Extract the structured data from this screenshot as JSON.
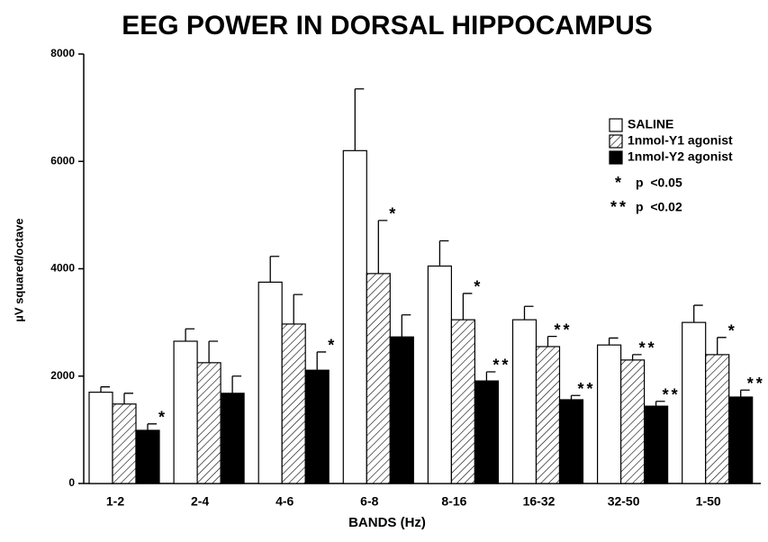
{
  "chart_data": {
    "type": "bar",
    "title": "EEG POWER IN DORSAL HIPPOCAMPUS",
    "x_label": "BANDS  (Hz)",
    "y_label": "µV  squared/octave",
    "categories": [
      "1-2",
      "2-4",
      "4-6",
      "6-8",
      "8-16",
      "16-32",
      "32-50",
      "1-50"
    ],
    "series": [
      {
        "name": "SALINE",
        "color": "#ffffff",
        "hatch": false,
        "values": [
          1700,
          2650,
          3750,
          6200,
          4050,
          3050,
          2580,
          3000
        ],
        "errors": [
          100,
          230,
          480,
          1150,
          470,
          250,
          130,
          320
        ],
        "significance": [
          null,
          null,
          null,
          null,
          null,
          null,
          null,
          null
        ]
      },
      {
        "name": "1nmol-Y1 agonist",
        "color": "#ffffff",
        "hatch": true,
        "values": [
          1480,
          2250,
          2970,
          3910,
          3050,
          2550,
          2300,
          2400
        ],
        "errors": [
          200,
          400,
          550,
          990,
          490,
          190,
          100,
          320
        ],
        "significance": [
          null,
          null,
          null,
          "*",
          "*",
          "**",
          "**",
          "*"
        ]
      },
      {
        "name": "1nmol-Y2 agonist",
        "color": "#000000",
        "hatch": false,
        "values": [
          990,
          1680,
          2110,
          2730,
          1910,
          1560,
          1440,
          1610
        ],
        "errors": [
          120,
          320,
          340,
          410,
          170,
          80,
          90,
          130
        ],
        "significance": [
          "*",
          null,
          "*",
          null,
          "**",
          "**",
          "**",
          "**"
        ]
      }
    ],
    "legend_notes": [
      {
        "symbol": "*",
        "text": "p  <0.05"
      },
      {
        "symbol": "**",
        "text": "p  <0.02"
      }
    ],
    "ylim": [
      0,
      8000
    ],
    "yticks": [
      0,
      2000,
      4000,
      6000,
      8000
    ],
    "legend_position": "upper right"
  }
}
